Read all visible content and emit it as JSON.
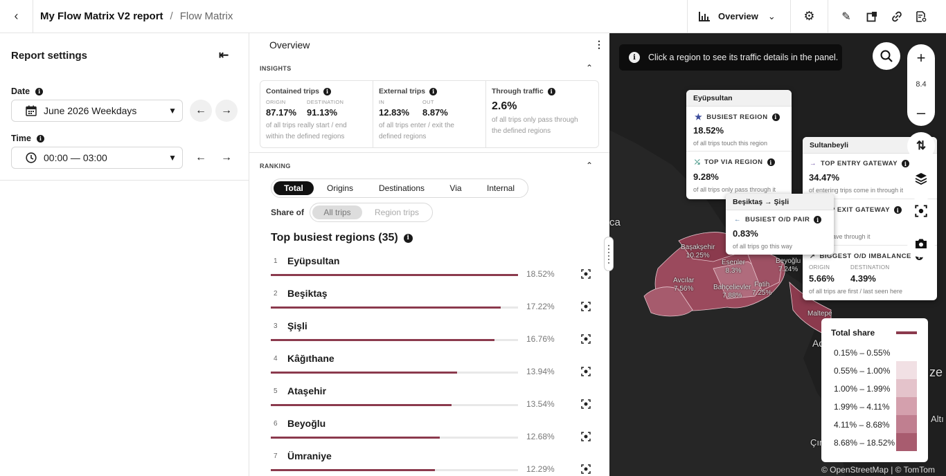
{
  "topbar": {
    "report_title": "My Flow Matrix V2 report",
    "separator": "/",
    "section": "Flow Matrix",
    "view_label": "Overview"
  },
  "report_settings": {
    "title": "Report settings",
    "date_label": "Date",
    "date_value": "June 2026 Weekdays",
    "time_label": "Time",
    "time_value": "00:00 — 03:00"
  },
  "panel": {
    "header": "Overview",
    "insights": {
      "label": "INSIGHTS",
      "contained": {
        "title": "Contained trips",
        "origin_label": "ORIGIN",
        "origin_value": "87.17%",
        "dest_label": "DESTINATION",
        "dest_value": "91.13%",
        "desc_1": "of all trips really start / end",
        "desc_2": "within the defined regions"
      },
      "external": {
        "title": "External trips",
        "in_label": "IN",
        "in_value": "12.83%",
        "out_label": "OUT",
        "out_value": "8.87%",
        "desc_1": "of all trips enter / exit the",
        "desc_2": "defined regions"
      },
      "through": {
        "title": "Through traffic",
        "value": "2.6%",
        "desc_1": "of all trips only pass through",
        "desc_2": "the defined regions"
      }
    },
    "ranking": {
      "label": "RANKING",
      "tabs": [
        "Total",
        "Origins",
        "Destinations",
        "Via",
        "Internal"
      ],
      "share_of_label": "Share of",
      "share_options": [
        "All trips",
        "Region trips"
      ],
      "title": "Top busiest regions (35)",
      "rows": [
        {
          "rank": "1",
          "name": "Eyüpsultan",
          "pct": "18.52%",
          "share": 18.52
        },
        {
          "rank": "2",
          "name": "Beşiktaş",
          "pct": "17.22%",
          "share": 17.22
        },
        {
          "rank": "3",
          "name": "Şişli",
          "pct": "16.76%",
          "share": 16.76
        },
        {
          "rank": "4",
          "name": "Kâğıthane",
          "pct": "13.94%",
          "share": 13.94
        },
        {
          "rank": "5",
          "name": "Ataşehir",
          "pct": "13.54%",
          "share": 13.54
        },
        {
          "rank": "6",
          "name": "Beyoğlu",
          "pct": "12.68%",
          "share": 12.68
        },
        {
          "rank": "7",
          "name": "Ümraniye",
          "pct": "12.29%",
          "share": 12.29
        }
      ]
    }
  },
  "map": {
    "banner": "Click a region to see its traffic details in the panel.",
    "zoom_level": "8.4",
    "labels": [
      {
        "name": "Başakşehir",
        "value": "10.25%"
      },
      {
        "name": "Esenler",
        "value": "8.3%"
      },
      {
        "name": "Avcılar",
        "value": "7.56%"
      },
      {
        "name": "Bahçelievler",
        "value": "7.88%"
      },
      {
        "name": "Fatih",
        "value": "7.25%"
      },
      {
        "name": "Beyoğlu",
        "value": "7.24%"
      }
    ],
    "bg_labels": [
      "ca",
      "Ada",
      "Maltepe",
      "ze",
      "Altı",
      "Çınar"
    ],
    "card_eyup": {
      "title": "Eyüpsultan",
      "busiest_label": "BUSIEST REGION",
      "busiest_value": "18.52%",
      "busiest_desc": "of all trips touch this region",
      "via_label": "TOP VIA REGION",
      "via_value": "9.28%",
      "via_desc": "of all trips only pass through it"
    },
    "card_sultan": {
      "title": "Sultanbeyli",
      "entry_label": "TOP ENTRY GATEWAY",
      "entry_value": "34.47%",
      "entry_desc": "of entering trips come in through it",
      "exit_label": "TOP EXIT GATEWAY",
      "exit_value": "%",
      "exit_desc": "g trips leave through it",
      "imb_label": "BIGGEST O/D IMBALANCE",
      "imb_origin_label": "ORIGIN",
      "imb_origin_value": "5.66%",
      "imb_dest_label": "DESTINATION",
      "imb_dest_value": "4.39%",
      "imb_desc": "of all trips are first / last seen here"
    },
    "card_pair": {
      "title": "Beşiktaş → Şişli",
      "label": "BUSIEST O/D PAIR",
      "value": "0.83%",
      "desc": "of all trips go this way"
    },
    "legend": {
      "title": "Total share",
      "ranges": [
        "0.15% – 0.55%",
        "0.55% – 1.00%",
        "1.00% – 1.99%",
        "1.99% – 4.11%",
        "4.11% – 8.68%",
        "8.68% – 18.52%"
      ],
      "colors": [
        "#ffffff",
        "#f1e0e4",
        "#e4c3cb",
        "#d4a0ad",
        "#c07f90",
        "#a85c6f"
      ]
    },
    "attribution": "© OpenStreetMap | © TomTom"
  }
}
